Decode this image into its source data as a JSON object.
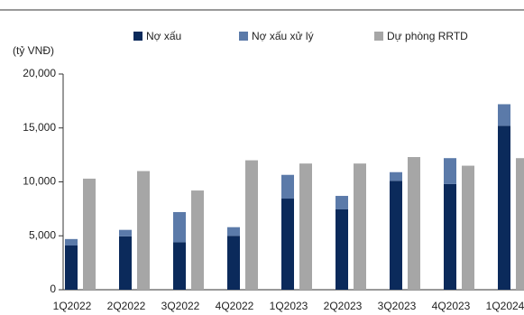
{
  "chart_data": {
    "type": "stacked-bar",
    "y_label": "(tỷ VNĐ)",
    "categories": [
      "1Q2022",
      "2Q2022",
      "3Q2022",
      "4Q2022",
      "1Q2023",
      "2Q2023",
      "3Q2023",
      "4Q2023",
      "1Q2024"
    ],
    "series": [
      {
        "name": "Nợ xấu",
        "color": "#0b2a5b",
        "stack": "a",
        "values": [
          4100,
          4950,
          4400,
          5000,
          8450,
          7450,
          10100,
          9800,
          15200
        ]
      },
      {
        "name": "Nợ xấu xử lý",
        "color": "#5b7aa9",
        "stack": "a",
        "values": [
          600,
          600,
          2800,
          800,
          2200,
          1250,
          800,
          2400,
          2000
        ]
      },
      {
        "name": "Dự phòng RRTD",
        "color": "#a6a6a6",
        "stack": "b",
        "values": [
          10300,
          11000,
          9200,
          12000,
          11700,
          11700,
          12300,
          11500,
          12200
        ]
      }
    ],
    "ylim": [
      0,
      20000
    ],
    "yticks": [
      0,
      {
        "value": 5000,
        "label": "5,000"
      },
      {
        "value": 10000,
        "label": "10,000"
      },
      {
        "value": 15000,
        "label": "15,000"
      },
      {
        "value": 20000,
        "label": "20,000"
      }
    ],
    "grid": false
  }
}
